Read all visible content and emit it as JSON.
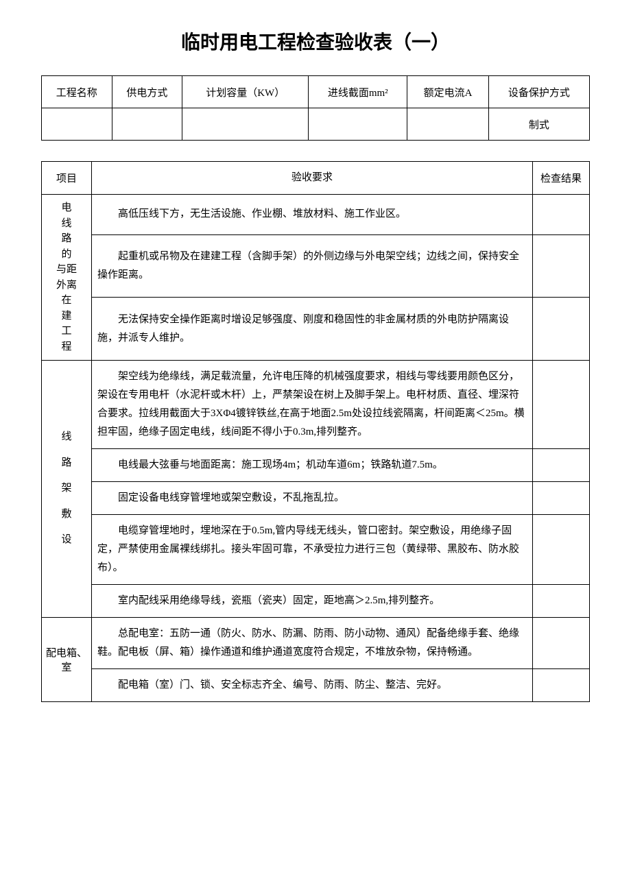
{
  "title": "临时用电工程检查验收表（一）",
  "header": {
    "cols": [
      "工程名称",
      "供电方式",
      "计划容量（KW）",
      "进线截面mm²",
      "额定电流A",
      "设备保护方式"
    ],
    "row2_last": "制式"
  },
  "main": {
    "head": {
      "item": "项目",
      "req": "验收要求",
      "result": "检查结果"
    },
    "g1": {
      "label": "电线路的与外在建工程距离",
      "rows": [
        "高低压线下方，无生活设施、作业棚、堆放材料、施工作业区。",
        "起重机或吊物及在建建工程（含脚手架）的外侧边缘与外电架空线；边线之间，保持安全操作距离。",
        "无法保持安全操作距离时增设足够强度、刚度和稳固性的非金属材质的外电防护隔离设施，并派专人维护。"
      ]
    },
    "g2": {
      "label": "线路架敷设",
      "rows": [
        "架空线为绝缘线，满足载流量，允许电压降的机械强度要求，相线与零线要用颜色区分，架设在专用电杆（水泥杆或木杆）上，严禁架设在树上及脚手架上。电杆材质、直径、埋深符合要求。拉线用截面大于3XΦ4镀锌铁丝,在高于地面2.5m处设拉线瓷隔离，杆间距离＜25m。横担牢固，绝缘子固定电线，线间距不得小于0.3m,排列整齐。",
        "电线最大弦垂与地面距离：施工现场4m；机动车道6m；铁路轨道7.5m。",
        "固定设备电线穿管埋地或架空敷设，不乱拖乱拉。",
        "电缆穿管埋地时，埋地深在于0.5m,管内导线无线头，管口密封。架空敷设，用绝缘子固定，严禁使用金属裸线绑扎。接头牢固可靠，不承受拉力进行三包（黄绿带、黑胶布、防水胶布）。",
        "室内配线采用绝缘导线，瓷瓶（瓷夹）固定，距地高＞2.5m,排列整齐。"
      ]
    },
    "g3": {
      "label": "配电箱、室",
      "rows": [
        "总配电室：五防一通（防火、防水、防漏、防雨、防小动物、通风）配备绝缘手套、绝缘鞋。配电板（屏、箱）操作通道和维护通道宽度符合规定，不堆放杂物，保持畅通。",
        "配电箱（室）门、锁、安全标志齐全、编号、防雨、防尘、整洁、完好。"
      ]
    }
  }
}
